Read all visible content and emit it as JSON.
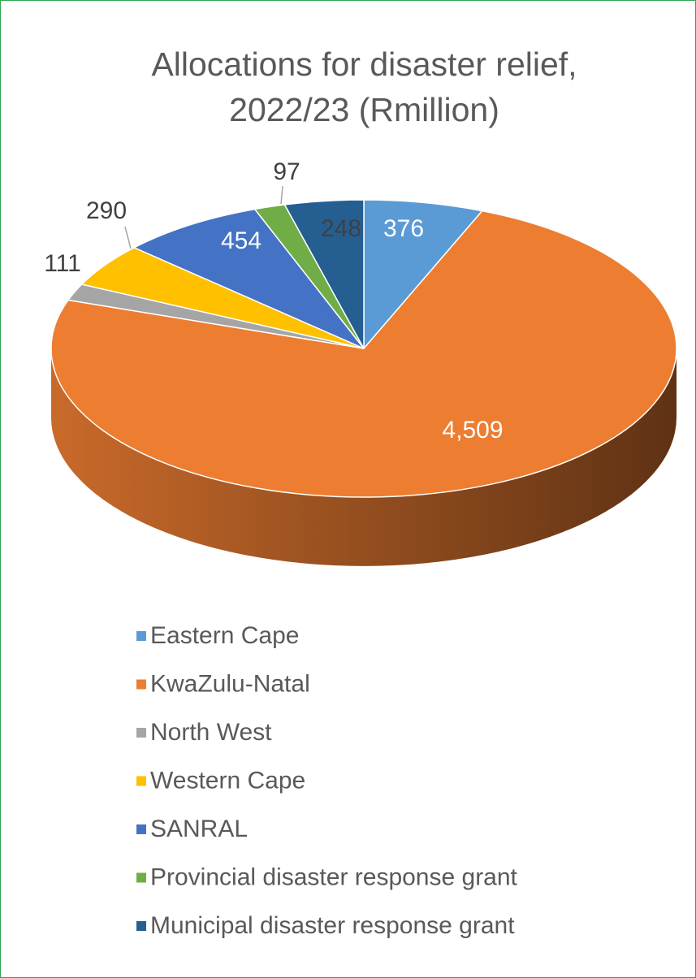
{
  "chart_data": {
    "type": "pie",
    "title": "Allocations for disaster relief, 2022/23 (Rmillion)",
    "categories": [
      "Eastern Cape",
      "KwaZulu-Natal",
      "North West",
      "Western Cape",
      "SANRAL",
      "Provincial disaster response grant",
      "Municipal disaster response grant"
    ],
    "values": [
      376,
      4509,
      111,
      290,
      454,
      97,
      248
    ],
    "value_labels": [
      "376",
      "4,509",
      "111",
      "290",
      "454",
      "97",
      "248"
    ],
    "colors": [
      "#5b9bd5",
      "#ed7d31",
      "#a5a5a5",
      "#ffc000",
      "#4472c4",
      "#70ad47",
      "#255e91"
    ],
    "legend": "bottom"
  }
}
